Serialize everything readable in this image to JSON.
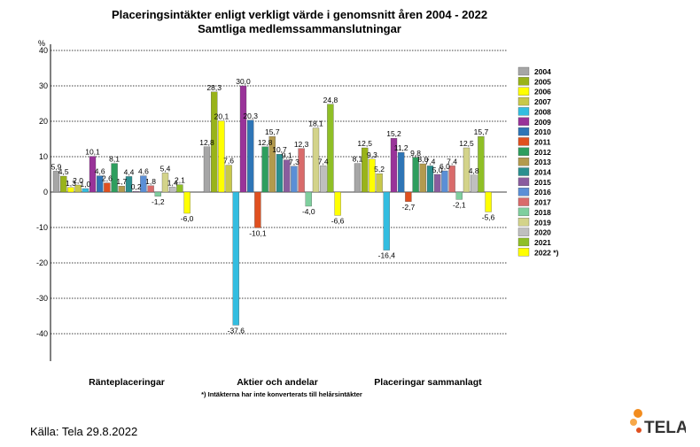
{
  "chart_data": {
    "type": "bar",
    "title": "Placeringsintäkter enligt verkligt värde i genomsnitt åren 2004 - 2022",
    "subtitle": "Samtliga medlemssammanslutningar",
    "ylabel": "%",
    "ylim": [
      -40,
      40
    ],
    "yticks": [
      "40",
      "30",
      "20",
      "10",
      "0",
      "-10",
      "-20",
      "-30",
      "-40"
    ],
    "grid": true,
    "legend_position": "right",
    "categories": [
      "Ränteplaceringar",
      "Aktier och andelar",
      "Placeringar sammanlagt"
    ],
    "series": [
      {
        "name": "2004",
        "color": "#a6a6a6",
        "values": [
          5.9,
          12.8,
          8.1
        ],
        "labels": [
          "5,9",
          "12,8",
          "8,1"
        ]
      },
      {
        "name": "2005",
        "color": "#99b31a",
        "values": [
          4.5,
          28.3,
          12.5
        ],
        "labels": [
          "4,5",
          "28,3",
          "12,5"
        ]
      },
      {
        "name": "2006",
        "color": "#ffff00",
        "values": [
          1.3,
          20.1,
          9.3
        ],
        "labels": [
          "1,3",
          "20,1",
          "9,3"
        ]
      },
      {
        "name": "2007",
        "color": "#c8c84a",
        "values": [
          2.0,
          7.6,
          5.2
        ],
        "labels": [
          "2,0",
          "7,6",
          "5,2"
        ]
      },
      {
        "name": "2008",
        "color": "#33bde0",
        "values": [
          1.0,
          -37.6,
          -16.4
        ],
        "labels": [
          "1,0",
          "-37,6",
          "-16,4"
        ]
      },
      {
        "name": "2009",
        "color": "#993399",
        "values": [
          10.1,
          30.0,
          15.2
        ],
        "labels": [
          "10,1",
          "30,0",
          "15,2"
        ]
      },
      {
        "name": "2010",
        "color": "#2e75b6",
        "values": [
          4.6,
          20.3,
          11.2
        ],
        "labels": [
          "4,6",
          "20,3",
          "11,2"
        ]
      },
      {
        "name": "2011",
        "color": "#e0501f",
        "values": [
          2.6,
          -10.1,
          -2.7
        ],
        "labels": [
          "2,6",
          "-10,1",
          "-2,7"
        ]
      },
      {
        "name": "2012",
        "color": "#2e9e5e",
        "values": [
          8.1,
          12.8,
          9.8
        ],
        "labels": [
          "8,1",
          "12,8",
          "9,8"
        ]
      },
      {
        "name": "2013",
        "color": "#b39a4d",
        "values": [
          1.7,
          15.7,
          8.0
        ],
        "labels": [
          "1,7",
          "15,7",
          "8,0"
        ]
      },
      {
        "name": "2014",
        "color": "#2a8f8f",
        "values": [
          4.4,
          10.7,
          7.4
        ],
        "labels": [
          "4,4",
          "10,7",
          "7,4"
        ]
      },
      {
        "name": "2015",
        "color": "#8a5c9e",
        "values": [
          0.2,
          9.1,
          5.0
        ],
        "labels": [
          "0,2",
          "9,1",
          "5,0"
        ]
      },
      {
        "name": "2016",
        "color": "#5b8fd6",
        "values": [
          4.6,
          7.3,
          6.0
        ],
        "labels": [
          "4,6",
          "7,3",
          "6,0"
        ]
      },
      {
        "name": "2017",
        "color": "#d96b6b",
        "values": [
          1.8,
          12.3,
          7.4
        ],
        "labels": [
          "1,8",
          "12,3",
          "7,4"
        ]
      },
      {
        "name": "2018",
        "color": "#7fcf9e",
        "values": [
          -1.2,
          -4.0,
          -2.1
        ],
        "labels": [
          "-1,2",
          "-4,0",
          "-2,1"
        ]
      },
      {
        "name": "2019",
        "color": "#d3d38a",
        "values": [
          5.4,
          18.1,
          12.5
        ],
        "labels": [
          "5,4",
          "18,1",
          "12,5"
        ]
      },
      {
        "name": "2020",
        "color": "#bfbfbf",
        "values": [
          1.4,
          7.4,
          4.8
        ],
        "labels": [
          "1,4",
          "7,4",
          "4,8"
        ]
      },
      {
        "name": "2021",
        "color": "#8fbf26",
        "values": [
          2.1,
          24.8,
          15.7
        ],
        "labels": [
          "2,1",
          "24,8",
          "15,7"
        ]
      },
      {
        "name": "2022 *)",
        "color": "#ffff00",
        "values": [
          -6.0,
          -6.6,
          -5.6
        ],
        "labels": [
          "-6,0",
          "-6,6",
          "-5,6"
        ]
      }
    ],
    "footnote": "*) Intäkterna har inte konverterats till helårsintäkter"
  },
  "source": "Källa: Tela 29.8.2022",
  "logo_text": "TELA",
  "colors": {
    "logo_orange": "#f28c1e",
    "logo_text": "#333333"
  }
}
